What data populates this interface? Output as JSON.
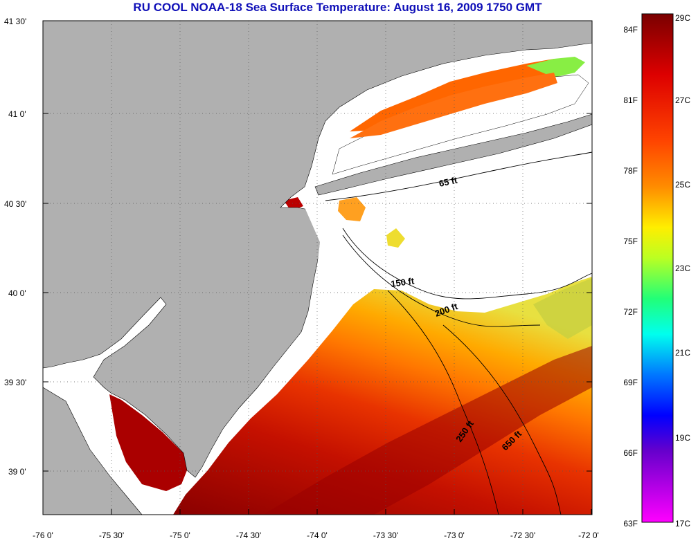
{
  "title": "RU COOL  NOAA-18  Sea Surface Temperature:  August 16, 2009 1750 GMT",
  "lat_labels": [
    "41 30'",
    "41 0'",
    "40 30'",
    "40 0'",
    "39 30'",
    "39 0'"
  ],
  "lon_labels": [
    "-76 0'",
    "-75 30'",
    "-75 0'",
    "-74 30'",
    "-74 0'",
    "-73 30'",
    "-73 0'",
    "-72 30'",
    "-72 0'"
  ],
  "isobath_labels": [
    "65 ft",
    "150 ft",
    "200 ft",
    "250 ft",
    "650 ft"
  ],
  "colorbar": {
    "fahrenheit": [
      "84F",
      "81F",
      "78F",
      "75F",
      "72F",
      "69F",
      "66F",
      "63F"
    ],
    "celsius": [
      "29C",
      "27C",
      "25C",
      "23C",
      "21C",
      "19C",
      "17C"
    ]
  },
  "colors": {
    "land": "#b0b0b0",
    "nodata": "#ffffff",
    "title": "#1010b8",
    "sst_gradient": [
      "#ff00ff",
      "#8800cc",
      "#0000ff",
      "#00ccff",
      "#00ffcc",
      "#44ff44",
      "#ffff00",
      "#ffaa00",
      "#ff5500",
      "#ff0000",
      "#aa0000",
      "#880000"
    ]
  }
}
